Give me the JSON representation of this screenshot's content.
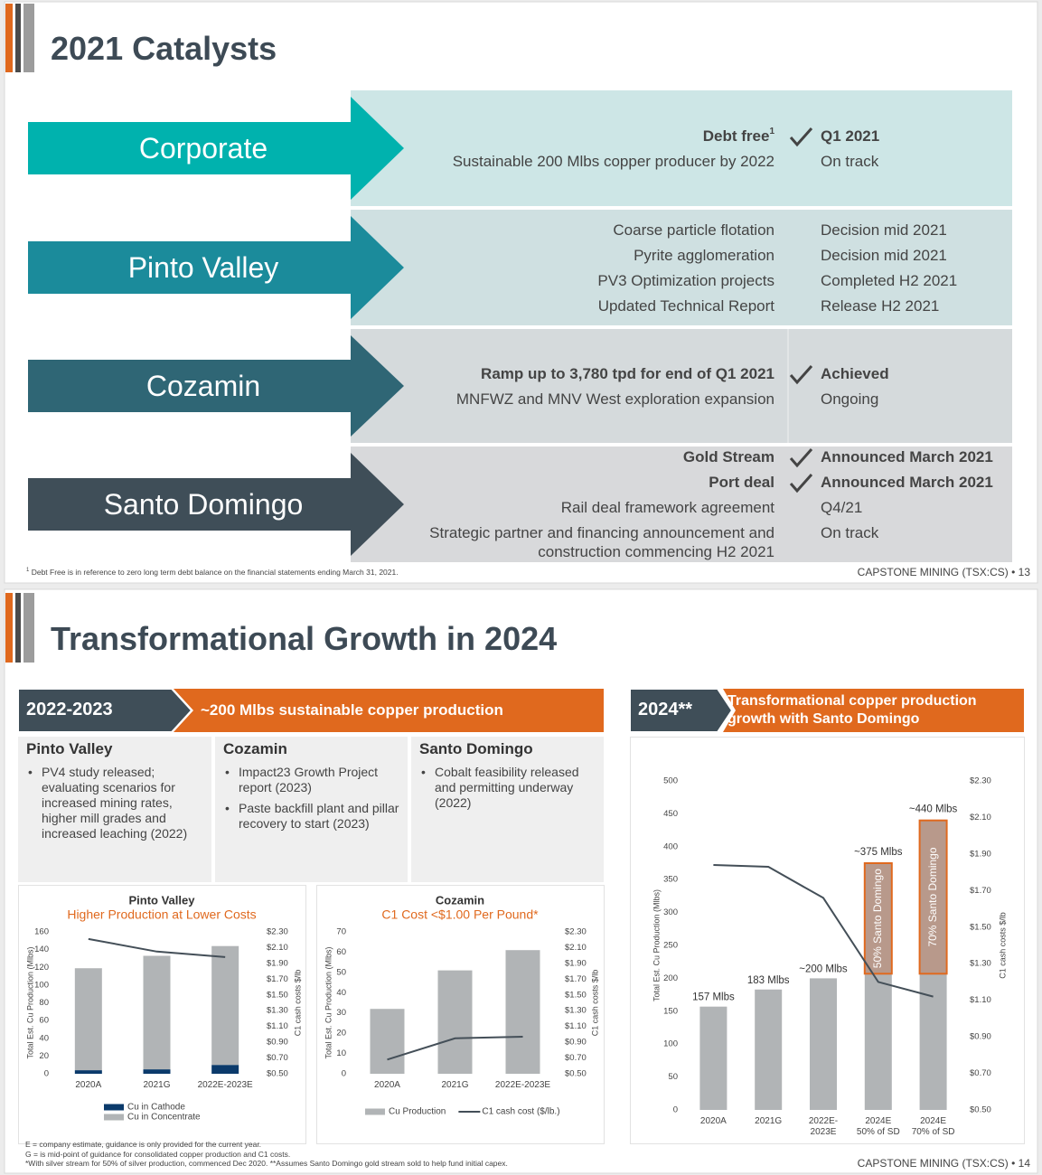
{
  "slides": [
    {
      "title": "2021 Catalysts",
      "sections": [
        {
          "name": "Corporate",
          "color": "#00b2ae",
          "panel_color": "#cde6e6",
          "items": [
            {
              "text": "Debt free",
              "sup": "1",
              "status": "Q1 2021",
              "bold": true,
              "check": true
            },
            {
              "text": "Sustainable 200 Mlbs copper producer by 2022",
              "status": "On track"
            }
          ]
        },
        {
          "name": "Pinto Valley",
          "color": "#1b8b9b",
          "panel_color": "#cfe0e1",
          "items": [
            {
              "text": "Coarse particle flotation",
              "status": "Decision mid 2021"
            },
            {
              "text": "Pyrite agglomeration",
              "status": "Decision mid 2021"
            },
            {
              "text": "PV3 Optimization projects",
              "status": "Completed H2 2021"
            },
            {
              "text": "Updated Technical Report",
              "status": "Release H2 2021"
            }
          ]
        },
        {
          "name": "Cozamin",
          "color": "#2f6675",
          "panel_color": "#d5dadc",
          "items": [
            {
              "text": "Ramp up to 3,780 tpd for end of Q1 2021",
              "status": "Achieved",
              "bold": true,
              "check": true
            },
            {
              "text": "MNFWZ and MNV West exploration expansion",
              "status": "Ongoing"
            }
          ]
        },
        {
          "name": "Santo Domingo",
          "color": "#3f4e58",
          "panel_color": "#d8d9db",
          "items": [
            {
              "text": "Gold Stream",
              "status": "Announced March 2021",
              "bold": true,
              "check": true
            },
            {
              "text": "Port deal",
              "status": "Announced March 2021",
              "bold": true,
              "check": true
            },
            {
              "text": "Rail deal framework agreement",
              "status": "Q4/21"
            },
            {
              "text": "Strategic partner and financing announcement and construction commencing H2 2021",
              "status": "On track"
            }
          ]
        }
      ],
      "footnote": {
        "mark": "1",
        "text": "Debt Free is in reference to zero long term debt balance on the financial statements ending March 31, 2021."
      },
      "footer": "CAPSTONE MINING (TSX:CS) • 13"
    },
    {
      "title": "Transformational Growth in 2024",
      "left_banner": {
        "label": "2022-2023",
        "text": "~200 Mlbs sustainable copper production"
      },
      "columns": [
        {
          "heading": "Pinto Valley",
          "bullets": [
            "PV4 study released; evaluating scenarios for increased mining rates, higher mill grades and increased leaching (2022)"
          ]
        },
        {
          "heading": "Cozamin",
          "bullets": [
            "Impact23 Growth Project report (2023)",
            "Paste backfill plant and pillar recovery to start (2023)"
          ]
        },
        {
          "heading": "Santo Domingo",
          "bullets": [
            "Cobalt feasibility released and permitting underway (2022)"
          ]
        }
      ],
      "right_banner": {
        "label": "2024**",
        "text": "Transformational copper production growth with Santo Domingo"
      },
      "footnotes": [
        "E = company estimate, guidance is only provided for the current year.",
        "G = is mid-point of guidance for consolidated copper production and C1 costs.",
        "*With silver stream for 50% of silver production, commenced Dec 2020. **Assumes Santo Domingo gold stream sold to help fund initial capex."
      ],
      "footer": "CAPSTONE MINING (TSX:CS) • 14"
    }
  ],
  "chart_data": [
    {
      "type": "bar",
      "stacked": true,
      "title": "Pinto Valley",
      "subtitle": "Higher Production at Lower Costs",
      "categories": [
        "2020A",
        "2021G",
        "2022E-2023E"
      ],
      "ylabel": "Total Est. Cu Production (Mlbs)",
      "y2label": "C1 cash costs $/lb",
      "ylim": [
        0,
        160
      ],
      "yticks": [
        0,
        20,
        40,
        60,
        80,
        100,
        120,
        140,
        160
      ],
      "y2lim": [
        0.5,
        2.3
      ],
      "y2ticks": [
        {
          "value": 0.5,
          "label": "$0.50"
        },
        {
          "value": 0.7,
          "label": "$0.70"
        },
        {
          "value": 0.9,
          "label": "$0.90"
        },
        {
          "value": 1.1,
          "label": "$1.10"
        },
        {
          "value": 1.3,
          "label": "$1.30"
        },
        {
          "value": 1.5,
          "label": "$1.50"
        },
        {
          "value": 1.7,
          "label": "$1.70"
        },
        {
          "value": 1.9,
          "label": "$1.90"
        },
        {
          "value": 2.1,
          "label": "$2.10"
        },
        {
          "value": 2.3,
          "label": "$2.30"
        }
      ],
      "series": [
        {
          "name": "Cu in Cathode",
          "color": "#0b3a6b",
          "values": [
            4,
            5,
            10
          ]
        },
        {
          "name": "Cu in Concentrate",
          "color": "#b1b4b6",
          "values": [
            115,
            128,
            134
          ]
        },
        {
          "type": "line",
          "axis": "y2",
          "color": "#444f58",
          "values": [
            2.21,
            2.05,
            1.98
          ]
        }
      ],
      "legend": "bottom"
    },
    {
      "type": "bar",
      "stacked": true,
      "title": "Cozamin",
      "subtitle": "C1 Cost <$1.00 Per Pound*",
      "categories": [
        "2020A",
        "2021G",
        "2022E-2023E"
      ],
      "ylabel": "Total Est. Cu Production (Mlbs)",
      "y2label": "C1 cash costs $/lb",
      "ylim": [
        0,
        70
      ],
      "yticks": [
        0,
        10,
        20,
        30,
        40,
        50,
        60,
        70
      ],
      "y2lim": [
        0.5,
        2.3
      ],
      "y2ticks": [
        {
          "value": 0.5,
          "label": "$0.50"
        },
        {
          "value": 0.7,
          "label": "$0.70"
        },
        {
          "value": 0.9,
          "label": "$0.90"
        },
        {
          "value": 1.1,
          "label": "$1.10"
        },
        {
          "value": 1.3,
          "label": "$1.30"
        },
        {
          "value": 1.5,
          "label": "$1.50"
        },
        {
          "value": 1.7,
          "label": "$1.70"
        },
        {
          "value": 1.9,
          "label": "$1.90"
        },
        {
          "value": 2.1,
          "label": "$2.10"
        },
        {
          "value": 2.3,
          "label": "$2.30"
        }
      ],
      "series": [
        {
          "name": "Cu Production",
          "color": "#b1b4b6",
          "values": [
            32,
            51,
            61
          ]
        },
        {
          "name": "C1 cash cost ($/lb.)",
          "type": "line",
          "axis": "y2",
          "color": "#444f58",
          "values": [
            0.68,
            0.95,
            0.97
          ]
        }
      ],
      "legend": "bottom"
    },
    {
      "type": "bar",
      "stacked": true,
      "categories": [
        "2020A",
        "2021G",
        "2022E-\n2023E",
        "2024E\n50% of SD",
        "2024E\n70% of SD"
      ],
      "ylabel": "Total Est. Cu Production (Mlbs)",
      "y2label": "C1 cash costs $/lb",
      "ylim": [
        0,
        500
      ],
      "yticks": [
        0,
        50,
        100,
        150,
        200,
        250,
        300,
        350,
        400,
        450,
        500
      ],
      "y2lim": [
        0.5,
        2.3
      ],
      "y2ticks": [
        {
          "value": 0.5,
          "label": "$0.50"
        },
        {
          "value": 0.7,
          "label": "$0.70"
        },
        {
          "value": 0.9,
          "label": "$0.90"
        },
        {
          "value": 1.1,
          "label": "$1.10"
        },
        {
          "value": 1.3,
          "label": "$1.30"
        },
        {
          "value": 1.5,
          "label": "$1.50"
        },
        {
          "value": 1.7,
          "label": "$1.70"
        },
        {
          "value": 1.9,
          "label": "$1.90"
        },
        {
          "value": 2.1,
          "label": "$2.10"
        },
        {
          "value": 2.3,
          "label": "$2.30"
        }
      ],
      "series": [
        {
          "color": "#b1b4b6",
          "values": [
            157,
            183,
            200,
            207,
            207
          ],
          "value_labels": [
            "157 Mlbs",
            "183 Mlbs",
            "~200 Mlbs",
            null,
            null
          ]
        },
        {
          "color": "#b8998b",
          "edgecolor": "#e0691e",
          "values": [
            null,
            null,
            null,
            168,
            233
          ]
        },
        {
          "type": "line",
          "axis": "y2",
          "color": "#444f58",
          "values": [
            1.84,
            1.83,
            1.66,
            1.2,
            1.12
          ]
        }
      ],
      "annotations": [
        "~375 Mlbs",
        "~440 Mlbs"
      ],
      "segment_labels": [
        "50% Santo Domingo",
        "70% Santo Domingo"
      ]
    }
  ]
}
